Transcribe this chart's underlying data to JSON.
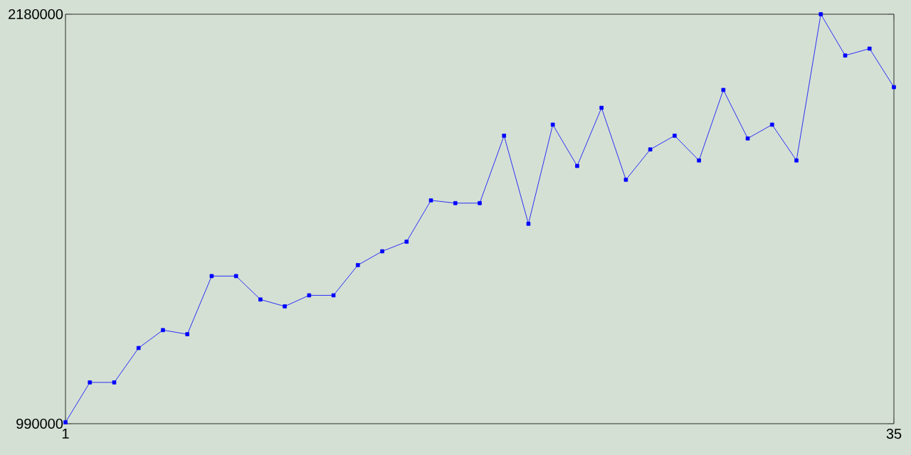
{
  "chart_data": {
    "type": "line",
    "x": [
      1,
      2,
      3,
      4,
      5,
      6,
      7,
      8,
      9,
      10,
      11,
      12,
      13,
      14,
      15,
      16,
      17,
      18,
      19,
      20,
      21,
      22,
      23,
      24,
      25,
      26,
      27,
      28,
      29,
      30,
      31,
      32,
      33,
      34,
      35
    ],
    "xlim": [
      1,
      35
    ],
    "xticks": [
      1,
      35
    ],
    "ylim": [
      990000,
      2180000
    ],
    "yticks": [
      990000,
      2180000
    ],
    "series": [
      {
        "color": "#0000ff",
        "values": [
          994000,
          1110000,
          1110000,
          1210000,
          1262000,
          1250000,
          1419000,
          1419000,
          1351000,
          1331000,
          1363000,
          1363000,
          1451000,
          1491000,
          1519000,
          1639000,
          1631000,
          1631000,
          1827000,
          1571000,
          1859000,
          1739000,
          1908000,
          1699000,
          1787000,
          1827000,
          1755000,
          1960000,
          1819000,
          1859000,
          1755000,
          2180000,
          2060000,
          2080000,
          1968000
        ]
      }
    ],
    "marker": "square",
    "grid": false
  }
}
